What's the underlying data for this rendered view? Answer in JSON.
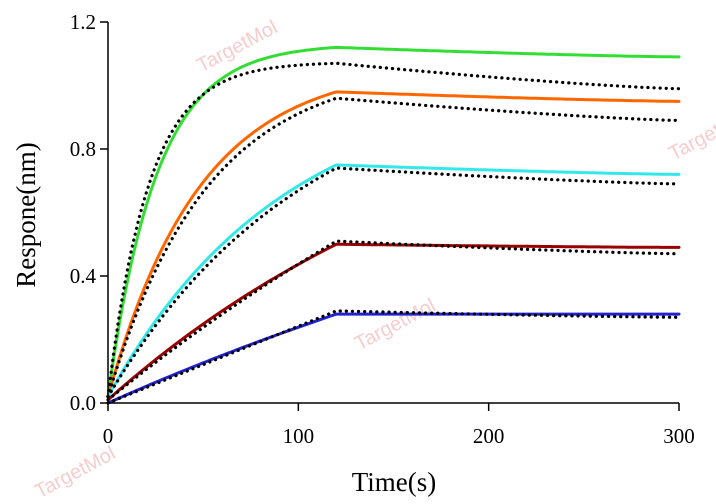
{
  "chart_data": {
    "type": "line",
    "title": "",
    "xlabel": "Time(s)",
    "ylabel": "Respone(nm)",
    "xlim": [
      0,
      300
    ],
    "ylim": [
      0,
      1.2
    ],
    "x_ticks": [
      "0",
      "100",
      "200",
      "300"
    ],
    "y_ticks": [
      "0.0",
      "0.4",
      "0.8",
      "1.2"
    ],
    "grid": false,
    "legend": "none",
    "association_end": 120,
    "series": [
      {
        "color": "#33dd33",
        "style": "measured",
        "values_at": {
          "0": 0.02,
          "20": 0.62,
          "60": 1.0,
          "120": 1.12,
          "300": 1.09
        }
      },
      {
        "color": "#000000",
        "style": "fit-dotted",
        "values_at": {
          "0": 0.02,
          "20": 0.66,
          "120": 1.07,
          "300": 0.99
        }
      },
      {
        "color": "#ff6600",
        "style": "measured",
        "values_at": {
          "0": 0.02,
          "40": 0.61,
          "120": 0.98,
          "300": 0.95
        }
      },
      {
        "color": "#000000",
        "style": "fit-dotted",
        "values_at": {
          "0": 0.02,
          "40": 0.58,
          "120": 0.96,
          "300": 0.89
        }
      },
      {
        "color": "#33e8e8",
        "style": "measured",
        "values_at": {
          "0": 0.02,
          "60": 0.5,
          "120": 0.75,
          "300": 0.72
        }
      },
      {
        "color": "#000000",
        "style": "fit-dotted",
        "values_at": {
          "0": 0.02,
          "60": 0.48,
          "120": 0.74,
          "300": 0.69
        }
      },
      {
        "color": "#990000",
        "style": "measured",
        "values_at": {
          "0": 0.01,
          "60": 0.29,
          "120": 0.5,
          "300": 0.49
        }
      },
      {
        "color": "#000000",
        "style": "fit-dotted",
        "values_at": {
          "0": 0.01,
          "60": 0.28,
          "120": 0.51,
          "300": 0.47
        }
      },
      {
        "color": "#2222cc",
        "style": "measured",
        "values_at": {
          "0": 0.0,
          "60": 0.15,
          "120": 0.28,
          "300": 0.28
        }
      },
      {
        "color": "#000000",
        "style": "fit-dotted",
        "values_at": {
          "0": 0.0,
          "60": 0.14,
          "120": 0.29,
          "300": 0.27
        }
      }
    ]
  },
  "watermark": {
    "text": "TargetMol",
    "color": "#f2a3a3"
  }
}
